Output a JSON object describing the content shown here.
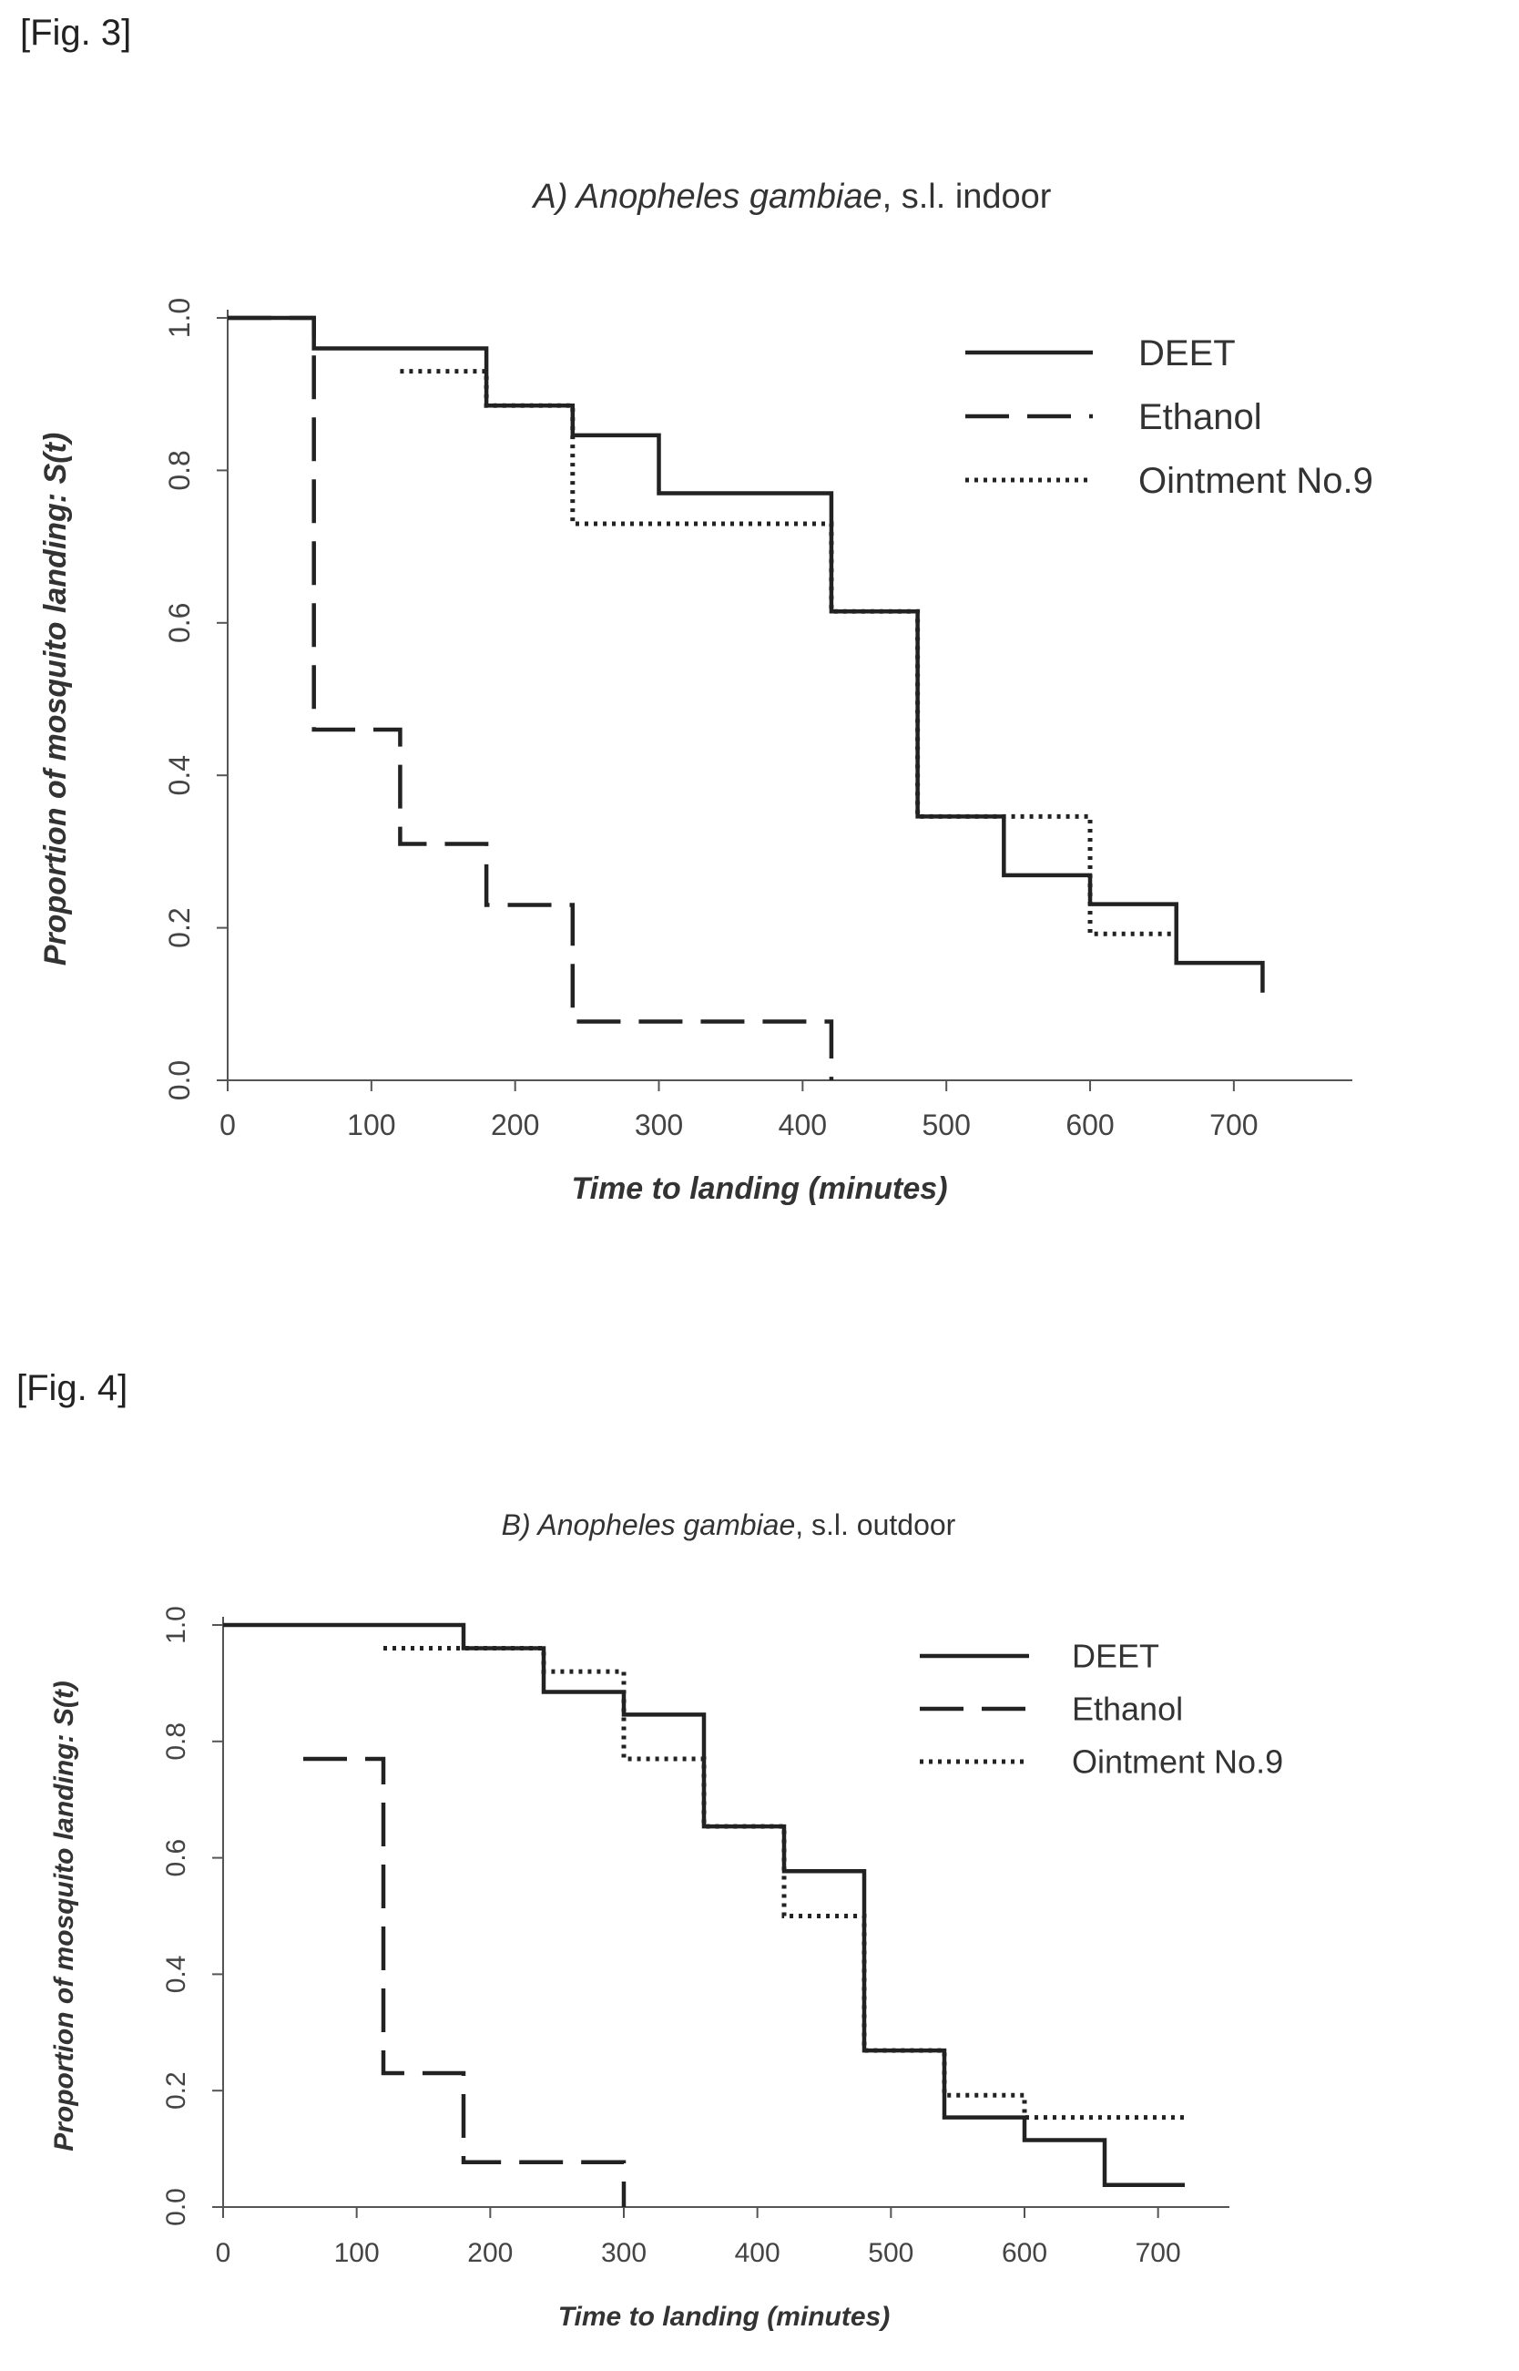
{
  "figures": [
    {
      "label": "[Fig. 3]"
    },
    {
      "label": "[Fig. 4]"
    }
  ],
  "chart_data": [
    {
      "type": "line",
      "step": "post",
      "title_italic": "A) Anopheles gambiae",
      "title_rest": ", s.l. indoor",
      "xlabel": "Time to landing (minutes)",
      "ylabel": "Proportion of mosquito landing: S(t)",
      "xlim": [
        0,
        740
      ],
      "ylim": [
        0,
        1.0
      ],
      "xticks": [
        0,
        100,
        200,
        300,
        400,
        500,
        600,
        700
      ],
      "yticks": [
        0.0,
        0.2,
        0.4,
        0.6,
        0.8,
        1.0
      ],
      "xtick_labels": [
        "0",
        "100",
        "200",
        "300",
        "400",
        "500",
        "600",
        "700"
      ],
      "ytick_labels": [
        "0.0",
        "0.2",
        "0.4",
        "0.6",
        "0.8",
        "1.0"
      ],
      "legend_position": "top-right",
      "series": [
        {
          "name": "DEET",
          "style": "solid",
          "x": [
            0,
            60,
            180,
            240,
            300,
            420,
            480,
            540,
            600,
            660,
            720
          ],
          "y": [
            1.0,
            0.96,
            0.885,
            0.846,
            0.77,
            0.615,
            0.346,
            0.269,
            0.231,
            0.154,
            0.115
          ]
        },
        {
          "name": "Ethanol",
          "style": "dashed",
          "x": [
            0,
            60,
            120,
            180,
            240,
            420
          ],
          "y": [
            1.0,
            0.46,
            0.31,
            0.23,
            0.077,
            0.0
          ]
        },
        {
          "name": "Ointment No.9",
          "style": "dotted",
          "x": [
            120,
            180,
            240,
            420,
            480,
            540,
            600,
            660
          ],
          "y": [
            0.93,
            0.885,
            0.73,
            0.615,
            0.346,
            0.346,
            0.192,
            0.192
          ]
        }
      ]
    },
    {
      "type": "line",
      "step": "post",
      "title_italic": "B) Anopheles gambiae",
      "title_rest": ", s.l. outdoor",
      "xlabel": "Time to landing (minutes)",
      "ylabel": "Proportion of mosquito landing: S(t)",
      "xlim": [
        0,
        750
      ],
      "ylim": [
        0,
        1.0
      ],
      "xticks": [
        0,
        100,
        200,
        300,
        400,
        500,
        600,
        700
      ],
      "yticks": [
        0.0,
        0.2,
        0.4,
        0.6,
        0.8,
        1.0
      ],
      "xtick_labels": [
        "0",
        "100",
        "200",
        "300",
        "400",
        "500",
        "600",
        "700"
      ],
      "ytick_labels": [
        "0.0",
        "0.2",
        "0.4",
        "0.6",
        "0.8",
        "1.0"
      ],
      "legend_position": "top-right",
      "series": [
        {
          "name": "DEET",
          "style": "solid",
          "x": [
            0,
            180,
            240,
            300,
            360,
            420,
            480,
            540,
            600,
            660,
            720
          ],
          "y": [
            1.0,
            0.96,
            0.885,
            0.846,
            0.654,
            0.577,
            0.269,
            0.154,
            0.115,
            0.038,
            0.038
          ]
        },
        {
          "name": "Ethanol",
          "style": "dashed",
          "x": [
            60,
            120,
            180,
            300
          ],
          "y": [
            0.77,
            0.23,
            0.077,
            0.0
          ]
        },
        {
          "name": "Ointment No.9",
          "style": "dotted",
          "x": [
            120,
            180,
            240,
            300,
            360,
            420,
            480,
            540,
            600,
            660,
            720
          ],
          "y": [
            0.96,
            0.96,
            0.92,
            0.77,
            0.654,
            0.5,
            0.269,
            0.192,
            0.154,
            0.154,
            0.154
          ]
        }
      ]
    }
  ]
}
